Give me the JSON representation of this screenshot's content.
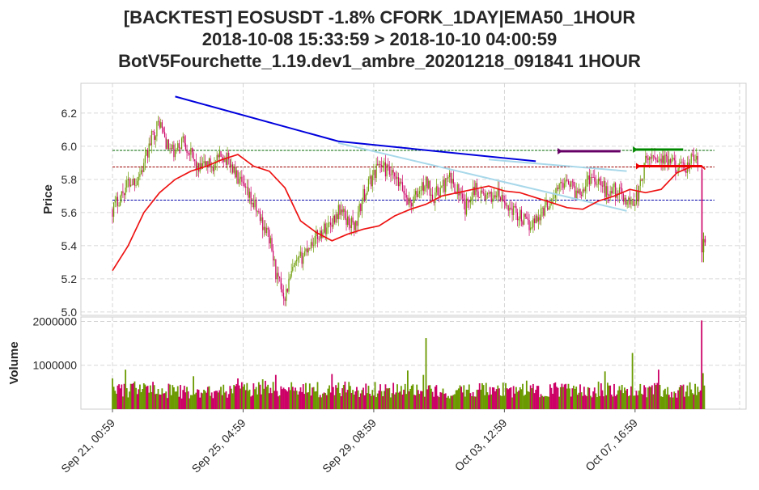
{
  "header": {
    "title_line1": "[BACKTEST] EOSUSDT -1.8% CFORK_1DAY|EMA50_1HOUR",
    "title_line2": "2018-10-08 15:33:59 > 2018-10-10 04:00:59",
    "title_line3": "BotV5Fourchette_1.19.dev1_ambre_20201218_091841 1HOUR"
  },
  "colors": {
    "candle_up": "#6a9a00",
    "candle_down": "#cc0066",
    "ema": "#ee1111",
    "trend_upper": "#0000dd",
    "trend_lower": "#a8d8ea",
    "level_top": "#006600",
    "level_mid": "#990000",
    "level_low": "#0000aa",
    "order_purple": "#660066",
    "order_green": "#008800",
    "order_red": "#ee0000"
  },
  "chart_data": [
    {
      "type": "candlestick",
      "ylabel": "Price",
      "ylim": [
        4.98,
        6.38
      ],
      "yticks": [
        "5.0",
        "5.2",
        "5.4",
        "5.6",
        "5.8",
        "6.0",
        "6.2"
      ],
      "xticks": [
        "Sep 21, 00:59",
        "Sep 25, 04:59",
        "Sep 29, 08:59",
        "Oct 03, 12:59",
        "Oct 07, 16:59"
      ],
      "xlim_days_after_sep21": [
        -1.0,
        18.7
      ],
      "grid": true,
      "close_path": [
        [
          0.0,
          5.62
        ],
        [
          0.25,
          5.7
        ],
        [
          0.5,
          5.78
        ],
        [
          0.75,
          5.8
        ],
        [
          1.0,
          5.88
        ],
        [
          1.25,
          6.05
        ],
        [
          1.5,
          6.15
        ],
        [
          1.75,
          6.0
        ],
        [
          2.0,
          5.95
        ],
        [
          2.25,
          6.05
        ],
        [
          2.5,
          5.95
        ],
        [
          2.75,
          5.85
        ],
        [
          3.0,
          5.9
        ],
        [
          3.25,
          5.88
        ],
        [
          3.5,
          5.95
        ],
        [
          3.75,
          5.9
        ],
        [
          4.0,
          5.8
        ],
        [
          4.25,
          5.72
        ],
        [
          4.5,
          5.65
        ],
        [
          4.75,
          5.55
        ],
        [
          5.0,
          5.45
        ],
        [
          5.25,
          5.2
        ],
        [
          5.5,
          5.1
        ],
        [
          5.75,
          5.25
        ],
        [
          6.0,
          5.32
        ],
        [
          6.25,
          5.4
        ],
        [
          6.5,
          5.45
        ],
        [
          6.75,
          5.5
        ],
        [
          7.0,
          5.55
        ],
        [
          7.25,
          5.62
        ],
        [
          7.5,
          5.55
        ],
        [
          7.75,
          5.52
        ],
        [
          8.0,
          5.7
        ],
        [
          8.25,
          5.8
        ],
        [
          8.5,
          5.9
        ],
        [
          8.75,
          5.85
        ],
        [
          9.0,
          5.8
        ],
        [
          9.25,
          5.74
        ],
        [
          9.5,
          5.65
        ],
        [
          9.75,
          5.72
        ],
        [
          10.0,
          5.78
        ],
        [
          10.25,
          5.7
        ],
        [
          10.5,
          5.75
        ],
        [
          10.75,
          5.8
        ],
        [
          11.0,
          5.74
        ],
        [
          11.25,
          5.62
        ],
        [
          11.5,
          5.75
        ],
        [
          11.75,
          5.72
        ],
        [
          12.0,
          5.68
        ],
        [
          12.25,
          5.72
        ],
        [
          12.5,
          5.65
        ],
        [
          12.75,
          5.62
        ],
        [
          13.0,
          5.58
        ],
        [
          13.25,
          5.52
        ],
        [
          13.5,
          5.56
        ],
        [
          13.75,
          5.62
        ],
        [
          14.0,
          5.68
        ],
        [
          14.25,
          5.75
        ],
        [
          14.5,
          5.82
        ],
        [
          14.75,
          5.72
        ],
        [
          15.0,
          5.75
        ],
        [
          15.25,
          5.82
        ],
        [
          15.5,
          5.8
        ],
        [
          15.75,
          5.72
        ],
        [
          16.0,
          5.74
        ],
        [
          16.25,
          5.7
        ],
        [
          16.5,
          5.66
        ],
        [
          16.75,
          5.7
        ],
        [
          17.0,
          5.9
        ],
        [
          17.25,
          5.95
        ],
        [
          17.5,
          5.92
        ],
        [
          17.75,
          5.9
        ],
        [
          18.0,
          5.88
        ],
        [
          18.25,
          5.85
        ],
        [
          18.5,
          5.93
        ],
        [
          18.6,
          5.92
        ],
        [
          18.7,
          5.88
        ]
      ],
      "final_candles": [
        {
          "x": 18.8,
          "open": 5.86,
          "high": 5.88,
          "low": 5.3,
          "close": 5.36
        },
        {
          "x": 18.85,
          "open": 5.36,
          "high": 5.48,
          "low": 5.3,
          "close": 5.44
        },
        {
          "x": 18.9,
          "open": 5.44,
          "high": 5.46,
          "low": 5.4,
          "close": 5.42
        }
      ],
      "ema": [
        [
          0.0,
          5.25
        ],
        [
          0.5,
          5.4
        ],
        [
          1.0,
          5.6
        ],
        [
          1.5,
          5.72
        ],
        [
          2.0,
          5.8
        ],
        [
          2.5,
          5.85
        ],
        [
          3.0,
          5.88
        ],
        [
          3.5,
          5.92
        ],
        [
          4.0,
          5.95
        ],
        [
          4.5,
          5.88
        ],
        [
          5.0,
          5.85
        ],
        [
          5.5,
          5.75
        ],
        [
          6.0,
          5.55
        ],
        [
          6.5,
          5.48
        ],
        [
          7.0,
          5.43
        ],
        [
          7.5,
          5.47
        ],
        [
          8.0,
          5.5
        ],
        [
          8.5,
          5.52
        ],
        [
          9.0,
          5.58
        ],
        [
          9.5,
          5.62
        ],
        [
          10.0,
          5.65
        ],
        [
          10.5,
          5.7
        ],
        [
          11.0,
          5.72
        ],
        [
          11.5,
          5.74
        ],
        [
          12.0,
          5.76
        ],
        [
          12.5,
          5.73
        ],
        [
          13.0,
          5.72
        ],
        [
          13.5,
          5.69
        ],
        [
          14.0,
          5.66
        ],
        [
          14.5,
          5.63
        ],
        [
          15.0,
          5.62
        ],
        [
          15.5,
          5.67
        ],
        [
          16.0,
          5.7
        ],
        [
          16.5,
          5.74
        ],
        [
          17.0,
          5.72
        ],
        [
          17.5,
          5.74
        ],
        [
          18.0,
          5.84
        ],
        [
          18.5,
          5.88
        ],
        [
          18.8,
          5.88
        ],
        [
          18.9,
          5.86
        ]
      ],
      "horizontal_levels": [
        {
          "y": 5.975,
          "color_key": "level_top"
        },
        {
          "y": 5.875,
          "color_key": "level_mid"
        },
        {
          "y": 5.675,
          "color_key": "level_low"
        }
      ],
      "trend_lines": [
        {
          "color_key": "trend_upper",
          "from": [
            2.0,
            6.3
          ],
          "to": [
            7.2,
            6.03
          ]
        },
        {
          "color_key": "trend_upper",
          "from": [
            7.2,
            6.03
          ],
          "to": [
            13.5,
            5.91
          ]
        },
        {
          "color_key": "trend_lower",
          "from": [
            7.2,
            6.02
          ],
          "to": [
            16.4,
            5.61
          ]
        },
        {
          "color_key": "trend_lower",
          "from": [
            12.0,
            5.92
          ],
          "to": [
            16.4,
            5.85
          ]
        }
      ],
      "order_markers": [
        {
          "color_key": "order_purple",
          "from": [
            14.3,
            5.97
          ],
          "to": [
            16.2,
            5.97
          ]
        },
        {
          "color_key": "order_green",
          "from": [
            16.7,
            5.98
          ],
          "to": [
            18.2,
            5.98
          ]
        },
        {
          "color_key": "order_red",
          "from": [
            16.8,
            5.88
          ],
          "to": [
            18.8,
            5.88
          ]
        }
      ]
    },
    {
      "type": "bar",
      "ylabel": "Volume",
      "ylim": [
        0,
        2100000
      ],
      "yticks": [
        "1000000",
        "2000000"
      ],
      "volume_profile": [
        [
          0.0,
          420000
        ],
        [
          1.0,
          470000
        ],
        [
          2.0,
          400000
        ],
        [
          3.0,
          380000
        ],
        [
          4.0,
          440000
        ],
        [
          5.0,
          470000
        ],
        [
          6.0,
          430000
        ],
        [
          7.0,
          450000
        ],
        [
          8.0,
          460000
        ],
        [
          9.0,
          430000
        ],
        [
          10.0,
          390000
        ],
        [
          11.0,
          410000
        ],
        [
          12.0,
          430000
        ],
        [
          13.0,
          440000
        ],
        [
          14.0,
          450000
        ],
        [
          15.0,
          440000
        ],
        [
          16.0,
          460000
        ],
        [
          17.0,
          450000
        ],
        [
          18.0,
          430000
        ],
        [
          18.9,
          450000
        ]
      ],
      "volume_spikes": [
        {
          "x": 0.0,
          "value": 700000
        },
        {
          "x": 0.4,
          "value": 900000
        },
        {
          "x": 2.6,
          "value": 750000
        },
        {
          "x": 4.0,
          "value": 700000
        },
        {
          "x": 4.8,
          "value": 680000
        },
        {
          "x": 5.2,
          "value": 780000
        },
        {
          "x": 7.0,
          "value": 800000
        },
        {
          "x": 9.4,
          "value": 880000
        },
        {
          "x": 9.9,
          "value": 780000
        },
        {
          "x": 10.0,
          "value": 1620000
        },
        {
          "x": 13.2,
          "value": 650000
        },
        {
          "x": 15.7,
          "value": 860000
        },
        {
          "x": 16.6,
          "value": 1280000
        },
        {
          "x": 17.4,
          "value": 900000
        },
        {
          "x": 18.8,
          "value": 2020000
        },
        {
          "x": 18.85,
          "value": 820000
        }
      ]
    }
  ]
}
